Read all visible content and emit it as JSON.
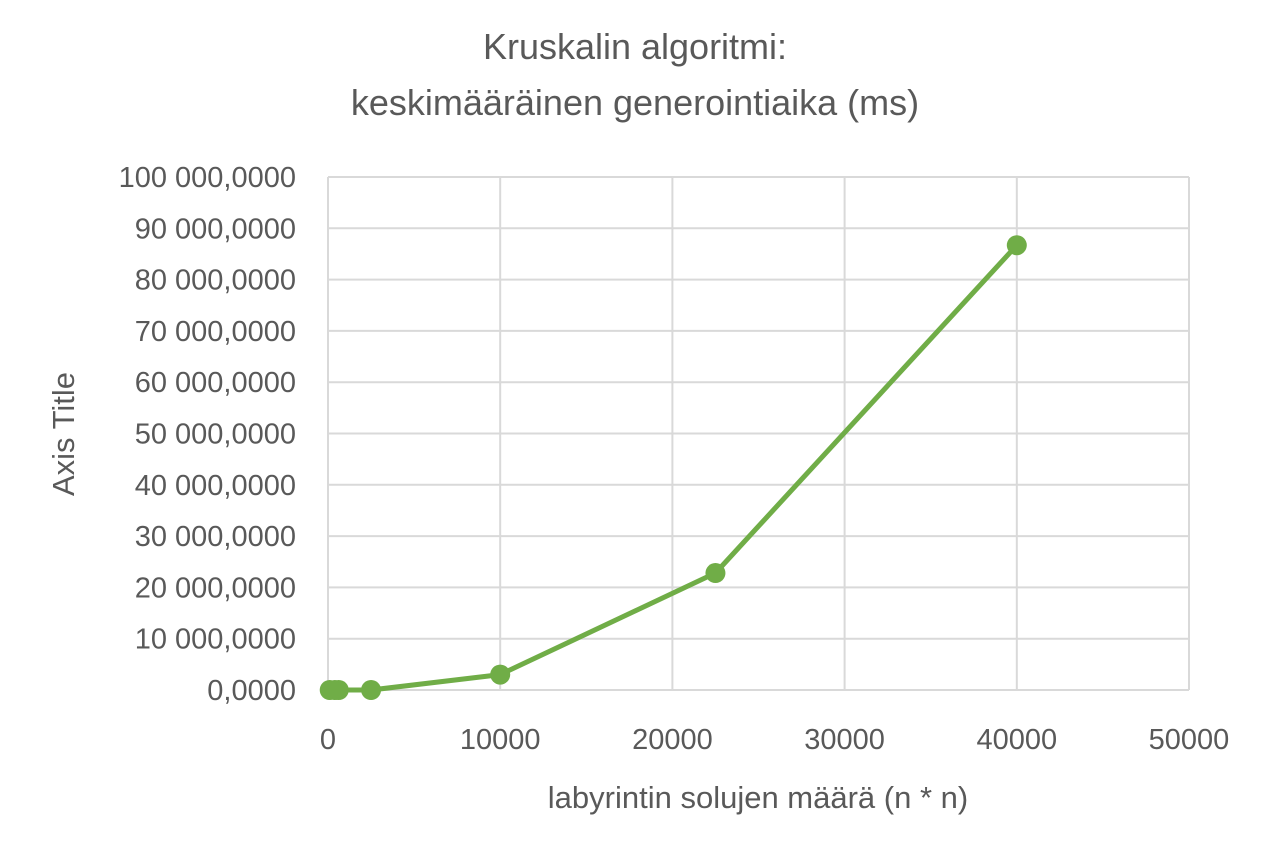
{
  "chart_data": {
    "type": "scatter",
    "title_lines": [
      "Kruskalin algoritmi:",
      "keskimääräinen generointiaika (ms)"
    ],
    "xlabel": "labyrintin solujen määrä (n * n)",
    "ylabel": "Axis Title",
    "xlim": [
      0,
      50000
    ],
    "ylim": [
      0,
      100000000
    ],
    "x_ticks": [
      0,
      10000,
      20000,
      30000,
      40000,
      50000
    ],
    "x_tick_labels": [
      "0",
      "10000",
      "20000",
      "30000",
      "40000",
      "50000"
    ],
    "y_ticks": [
      0,
      10000000,
      20000000,
      30000000,
      40000000,
      50000000,
      60000000,
      70000000,
      80000000,
      90000000,
      100000000
    ],
    "y_tick_labels": [
      "0,0000",
      "10 000,0000",
      "20 000,0000",
      "30 000,0000",
      "40 000,0000",
      "50 000,0000",
      "60 000,0000",
      "70 000,0000",
      "80 000,0000",
      "90 000,0000",
      "100 000,0000"
    ],
    "grid": true,
    "series": [
      {
        "color": "#70ad47",
        "x": [
          100,
          400,
          625,
          2500,
          10000,
          22500,
          40000
        ],
        "y": [
          0,
          0,
          0,
          0,
          3000000,
          22800000,
          86700000
        ]
      }
    ]
  }
}
